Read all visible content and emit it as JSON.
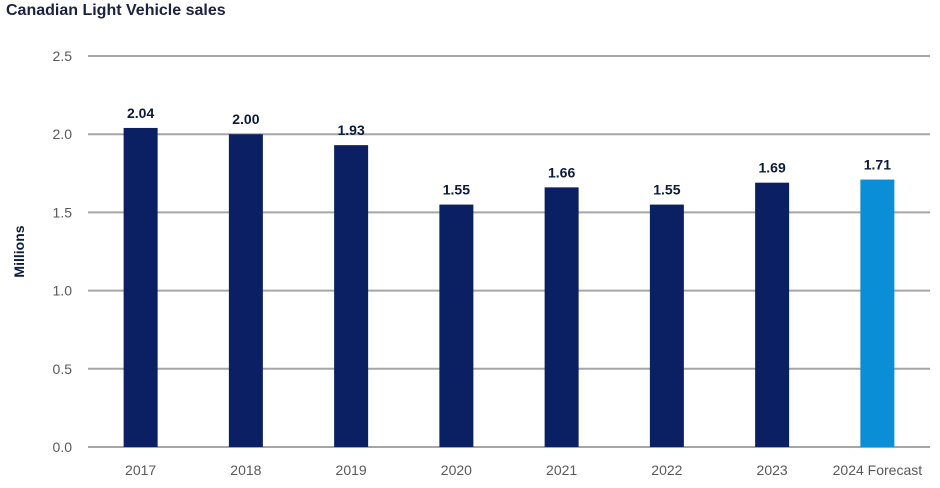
{
  "chart_data": {
    "type": "bar",
    "title": "Canadian Light Vehicle sales",
    "ylabel": "Millions",
    "xlabel": "",
    "categories": [
      "2017",
      "2018",
      "2019",
      "2020",
      "2021",
      "2022",
      "2023",
      "2024 Forecast"
    ],
    "values": [
      2.04,
      2.0,
      1.93,
      1.55,
      1.66,
      1.55,
      1.69,
      1.71
    ],
    "value_labels": [
      "2.04",
      "2.00",
      "1.93",
      "1.55",
      "1.66",
      "1.55",
      "1.69",
      "1.71"
    ],
    "ylim": [
      0,
      2.5
    ],
    "yticks": [
      "0.0",
      "0.5",
      "1.0",
      "1.5",
      "2.0",
      "2.5"
    ],
    "grid": "horizontal",
    "legend": "none",
    "colors": {
      "actual": "#0b1f63",
      "forecast": "#0a8fd6",
      "grid": "#a6a6a6",
      "title": "#1a2240"
    },
    "forecast_category": "2024 Forecast"
  }
}
